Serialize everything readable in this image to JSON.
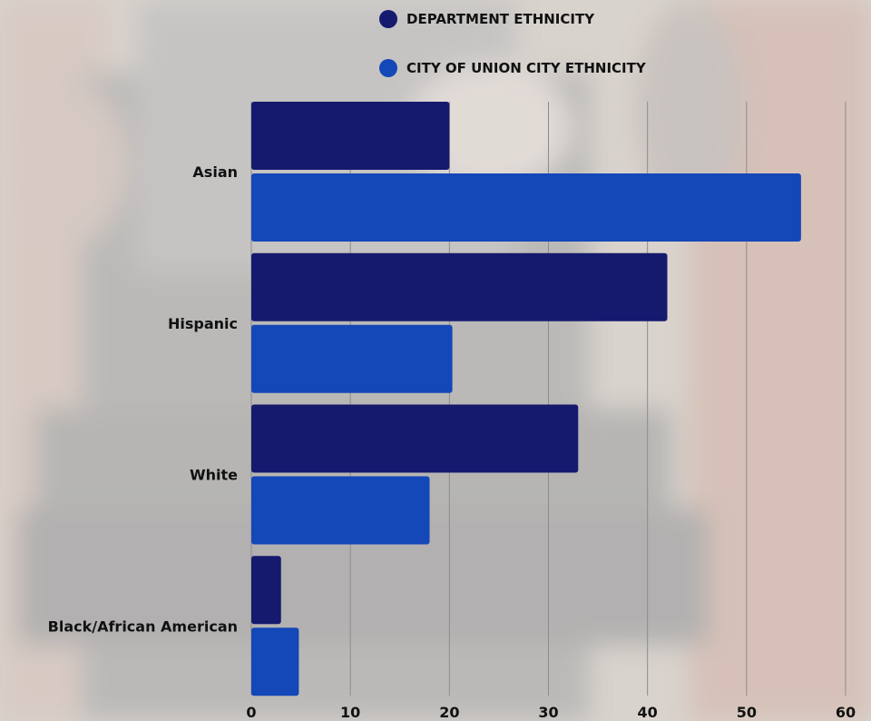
{
  "chart_data": {
    "type": "bar",
    "orientation": "horizontal",
    "categories": [
      "Asian",
      "Hispanic",
      "White",
      "Black/African American"
    ],
    "series": [
      {
        "name": "DEPARTMENT ETHNICITY",
        "color": "#151a6e",
        "values": [
          20,
          42,
          33,
          3
        ]
      },
      {
        "name": "CITY OF UNION CITY ETHNICITY",
        "color": "#1447b8",
        "values": [
          55.5,
          20.3,
          18,
          4.8
        ]
      }
    ],
    "xlim": [
      0,
      60
    ],
    "xticks": [
      "0",
      "10",
      "20",
      "30",
      "40",
      "50",
      "60"
    ],
    "grid": true,
    "legend_position": "top"
  }
}
